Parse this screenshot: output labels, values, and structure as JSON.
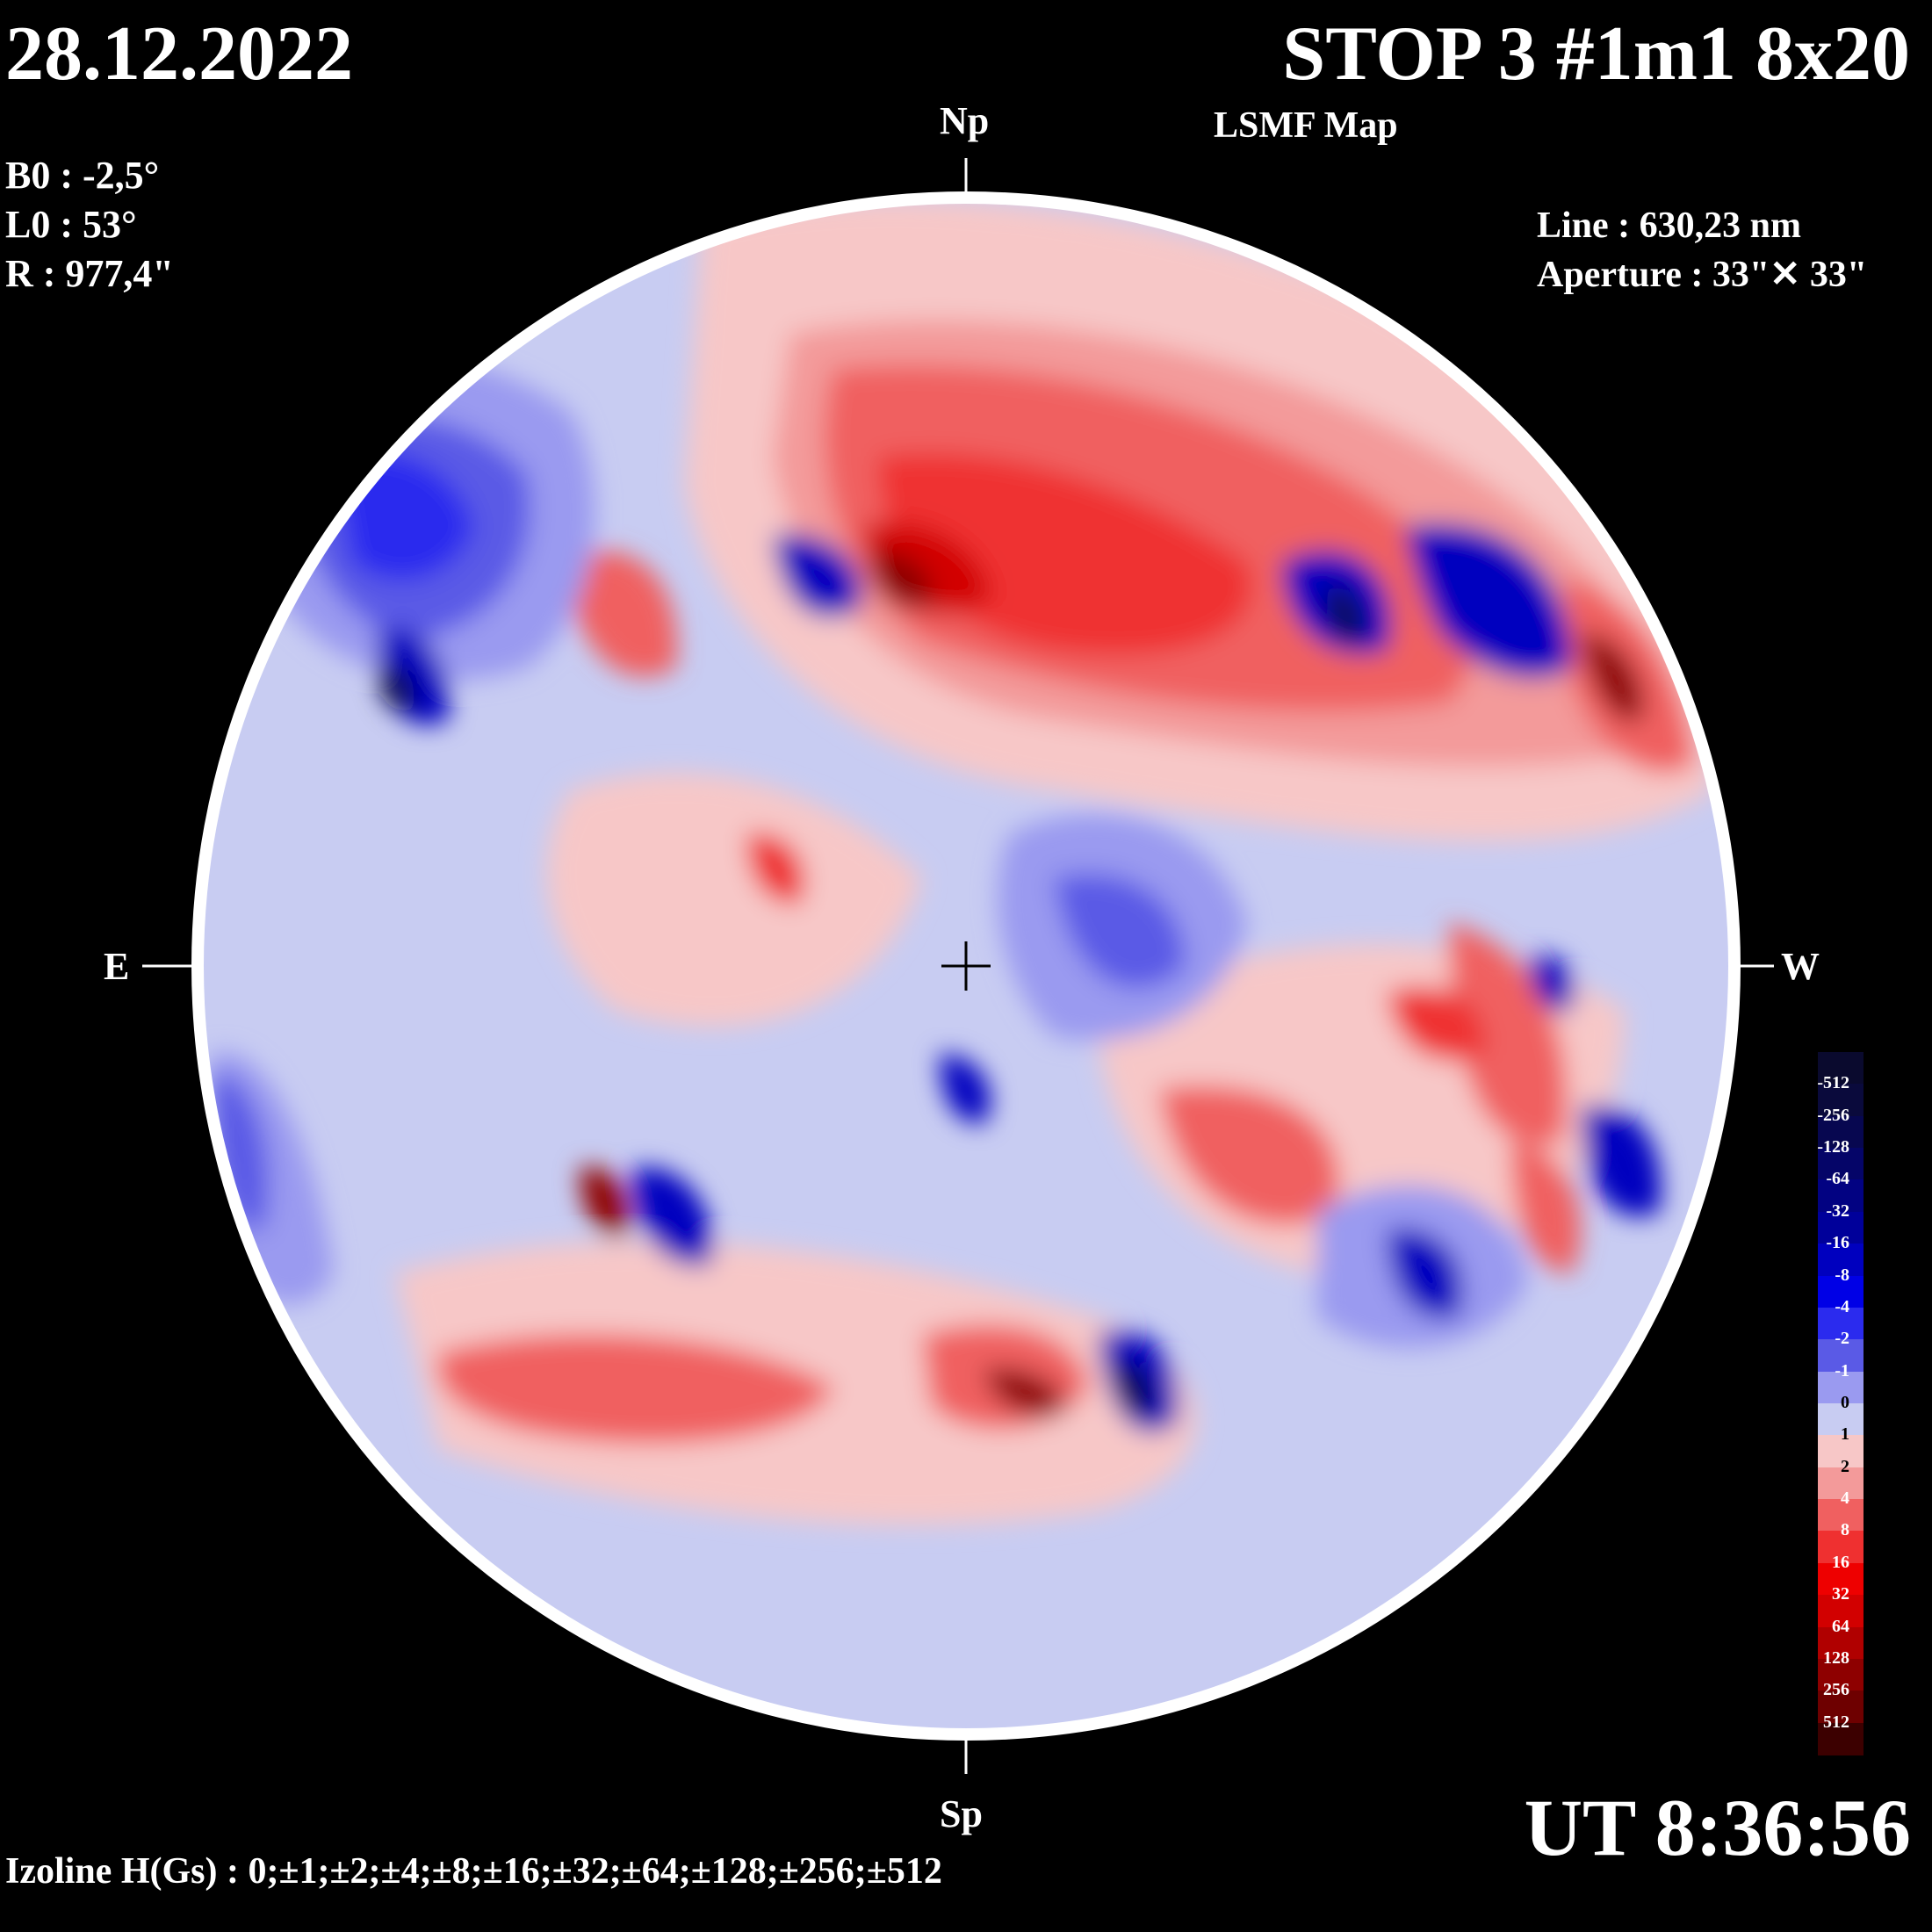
{
  "header": {
    "date": "28.12.2022",
    "title": "STOP 3 #1m1 8x20",
    "subtitle": "LSMF  Map"
  },
  "params": {
    "b0": "B0 : -2,5°",
    "l0": "L0 : 53°",
    "r": "R  : 977,4\""
  },
  "instrument": {
    "line": "Line :  630,23 nm",
    "aperture": "Aperture : 33\"✕ 33\""
  },
  "orientation": {
    "north": "Np",
    "south": "Sp",
    "east": "E",
    "west": "W"
  },
  "time": "UT 8:36:56",
  "izoline": "Izoline H(Gs) : 0;±1;±2;±4;±8;±16;±32;±64;±128;±256;±512",
  "scale": {
    "labels": [
      "-512",
      "-256",
      "-128",
      "-64",
      "-32",
      "-16",
      "-8",
      "-4",
      "-2",
      "-1",
      "0",
      "1",
      "2",
      "4",
      "8",
      "16",
      "32",
      "64",
      "128",
      "256",
      "512"
    ],
    "colors": [
      "#0a0a3c",
      "#070750",
      "#050568",
      "#020282",
      "#00009a",
      "#0000bf",
      "#0000e6",
      "#2b2bee",
      "#5a5ae6",
      "#9a9af0",
      "#c8ccf2",
      "#f7c7c7",
      "#f39a9a",
      "#f06060",
      "#ef3030",
      "#ee0000",
      "#d20000",
      "#b00000",
      "#8e0000",
      "#6e0000",
      "#500000"
    ]
  }
}
